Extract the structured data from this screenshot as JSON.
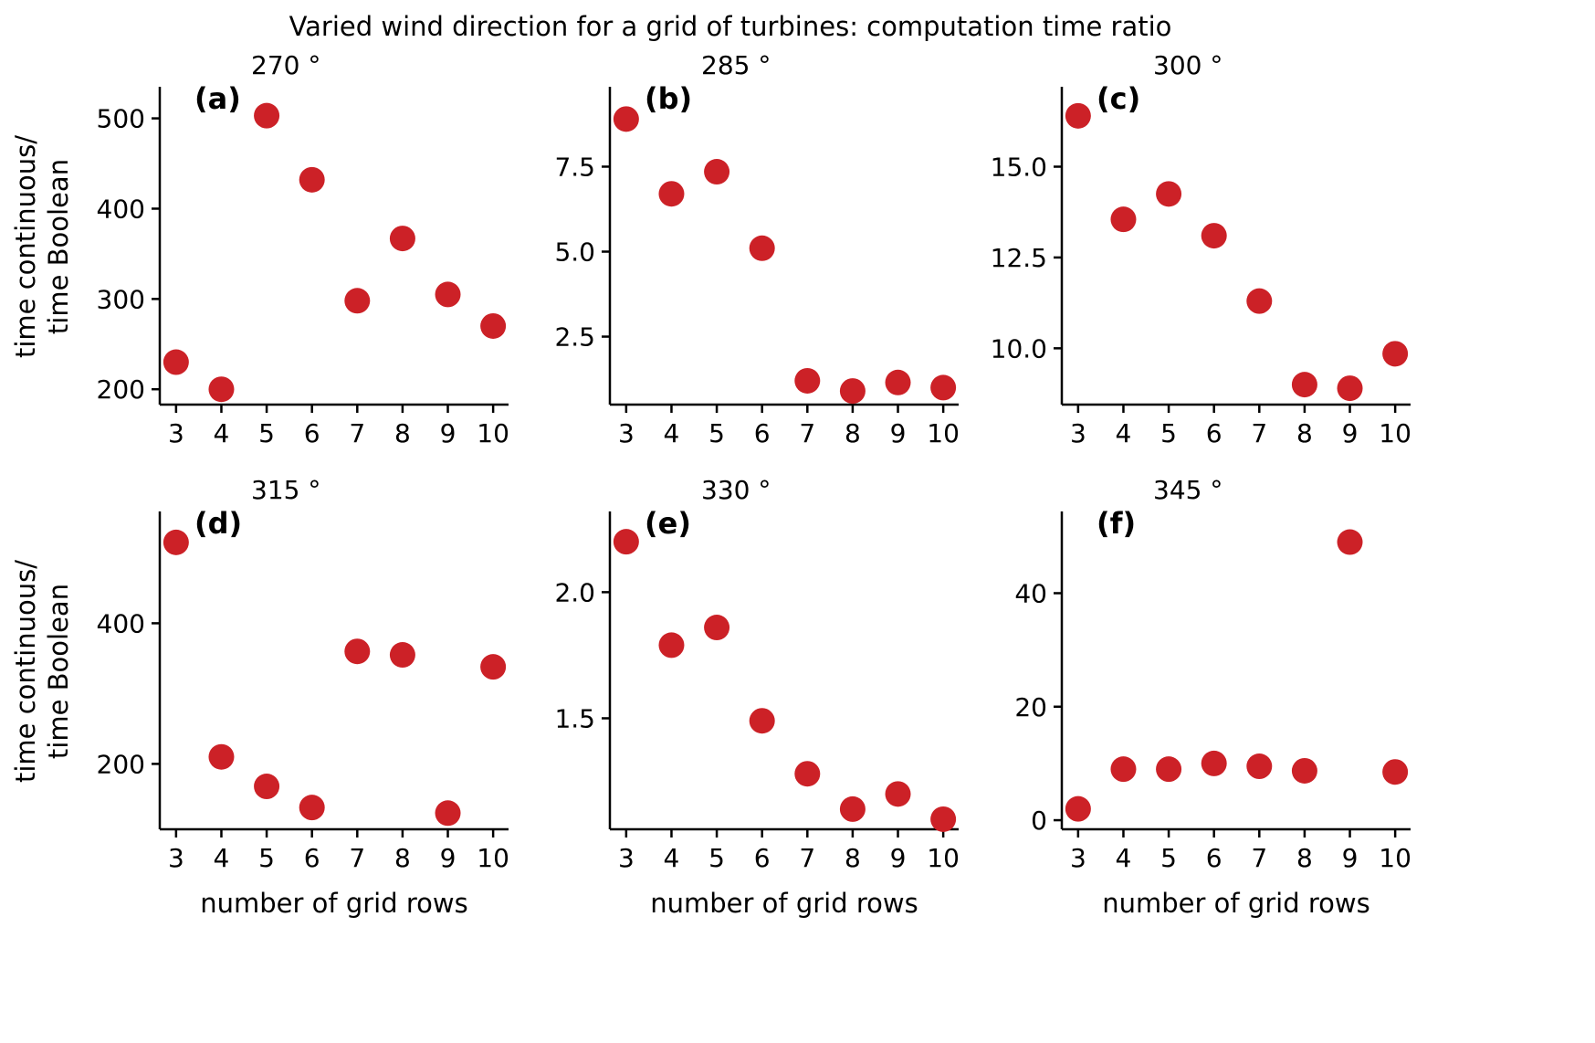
{
  "figure": {
    "title": "Varied wind direction for a grid of turbines: computation time ratio",
    "xlabel": "number of grid rows",
    "ylabel_line1": "time continuous/",
    "ylabel_line2": "time Boolean",
    "marker_color": "#cc2127"
  },
  "chart_data": [
    {
      "type": "scatter",
      "panel": "(a)",
      "title": "270 °",
      "x": [
        3,
        4,
        5,
        6,
        7,
        8,
        9,
        10
      ],
      "y": [
        230,
        200,
        503,
        432,
        298,
        367,
        305,
        270
      ],
      "xlim": [
        2.64,
        10.34
      ],
      "ylim": [
        183,
        535
      ],
      "xticks": [
        3,
        4,
        5,
        6,
        7,
        8,
        9,
        10
      ],
      "xtick_labels": [
        "3",
        "4",
        "5",
        "6",
        "7",
        "8",
        "9",
        "10"
      ],
      "yticks": [
        200,
        300,
        400,
        500
      ],
      "ytick_labels": [
        "200",
        "300",
        "400",
        "500"
      ]
    },
    {
      "type": "scatter",
      "panel": "(b)",
      "title": "285 °",
      "x": [
        3,
        4,
        5,
        6,
        7,
        8,
        9,
        10
      ],
      "y": [
        8.9,
        6.7,
        7.35,
        5.1,
        1.2,
        0.9,
        1.15,
        1.0
      ],
      "xlim": [
        2.64,
        10.34
      ],
      "ylim": [
        0.5,
        9.85
      ],
      "xticks": [
        3,
        4,
        5,
        6,
        7,
        8,
        9,
        10
      ],
      "xtick_labels": [
        "3",
        "4",
        "5",
        "6",
        "7",
        "8",
        "9",
        "10"
      ],
      "yticks": [
        2.5,
        5.0,
        7.5
      ],
      "ytick_labels": [
        "2.5",
        "5.0",
        "7.5"
      ]
    },
    {
      "type": "scatter",
      "panel": "(c)",
      "title": "300 °",
      "x": [
        3,
        4,
        5,
        6,
        7,
        8,
        9,
        10
      ],
      "y": [
        16.4,
        13.55,
        14.25,
        13.1,
        11.3,
        9.0,
        8.9,
        9.85
      ],
      "xlim": [
        2.64,
        10.34
      ],
      "ylim": [
        8.45,
        17.2
      ],
      "xticks": [
        3,
        4,
        5,
        6,
        7,
        8,
        9,
        10
      ],
      "xtick_labels": [
        "3",
        "4",
        "5",
        "6",
        "7",
        "8",
        "9",
        "10"
      ],
      "yticks": [
        10.0,
        12.5,
        15.0
      ],
      "ytick_labels": [
        "10.0",
        "12.5",
        "15.0"
      ]
    },
    {
      "type": "scatter",
      "panel": "(d)",
      "title": "315 °",
      "x": [
        3,
        4,
        5,
        6,
        7,
        8,
        9,
        10
      ],
      "y": [
        515,
        210,
        168,
        138,
        360,
        355,
        130,
        338
      ],
      "xlim": [
        2.64,
        10.34
      ],
      "ylim": [
        107,
        559
      ],
      "xticks": [
        3,
        4,
        5,
        6,
        7,
        8,
        9,
        10
      ],
      "xtick_labels": [
        "3",
        "4",
        "5",
        "6",
        "7",
        "8",
        "9",
        "10"
      ],
      "yticks": [
        200,
        400
      ],
      "ytick_labels": [
        "200",
        "400"
      ]
    },
    {
      "type": "scatter",
      "panel": "(e)",
      "title": "330 °",
      "x": [
        3,
        4,
        5,
        6,
        7,
        8,
        9,
        10
      ],
      "y": [
        2.2,
        1.79,
        1.86,
        1.49,
        1.28,
        1.14,
        1.2,
        1.1
      ],
      "xlim": [
        2.64,
        10.34
      ],
      "ylim": [
        1.06,
        2.32
      ],
      "xticks": [
        3,
        4,
        5,
        6,
        7,
        8,
        9,
        10
      ],
      "xtick_labels": [
        "3",
        "4",
        "5",
        "6",
        "7",
        "8",
        "9",
        "10"
      ],
      "yticks": [
        1.5,
        2.0
      ],
      "ytick_labels": [
        "1.5",
        "2.0"
      ]
    },
    {
      "type": "scatter",
      "panel": "(f)",
      "title": "345 °",
      "x": [
        3,
        4,
        5,
        6,
        7,
        8,
        9,
        10
      ],
      "y": [
        2,
        9,
        9,
        10,
        9.5,
        8.7,
        49,
        8.5
      ],
      "xlim": [
        2.64,
        10.34
      ],
      "ylim": [
        -1.6,
        54.4
      ],
      "xticks": [
        3,
        4,
        5,
        6,
        7,
        8,
        9,
        10
      ],
      "xtick_labels": [
        "3",
        "4",
        "5",
        "6",
        "7",
        "8",
        "9",
        "10"
      ],
      "yticks": [
        0,
        20,
        40
      ],
      "ytick_labels": [
        "0",
        "20",
        "40"
      ]
    }
  ]
}
